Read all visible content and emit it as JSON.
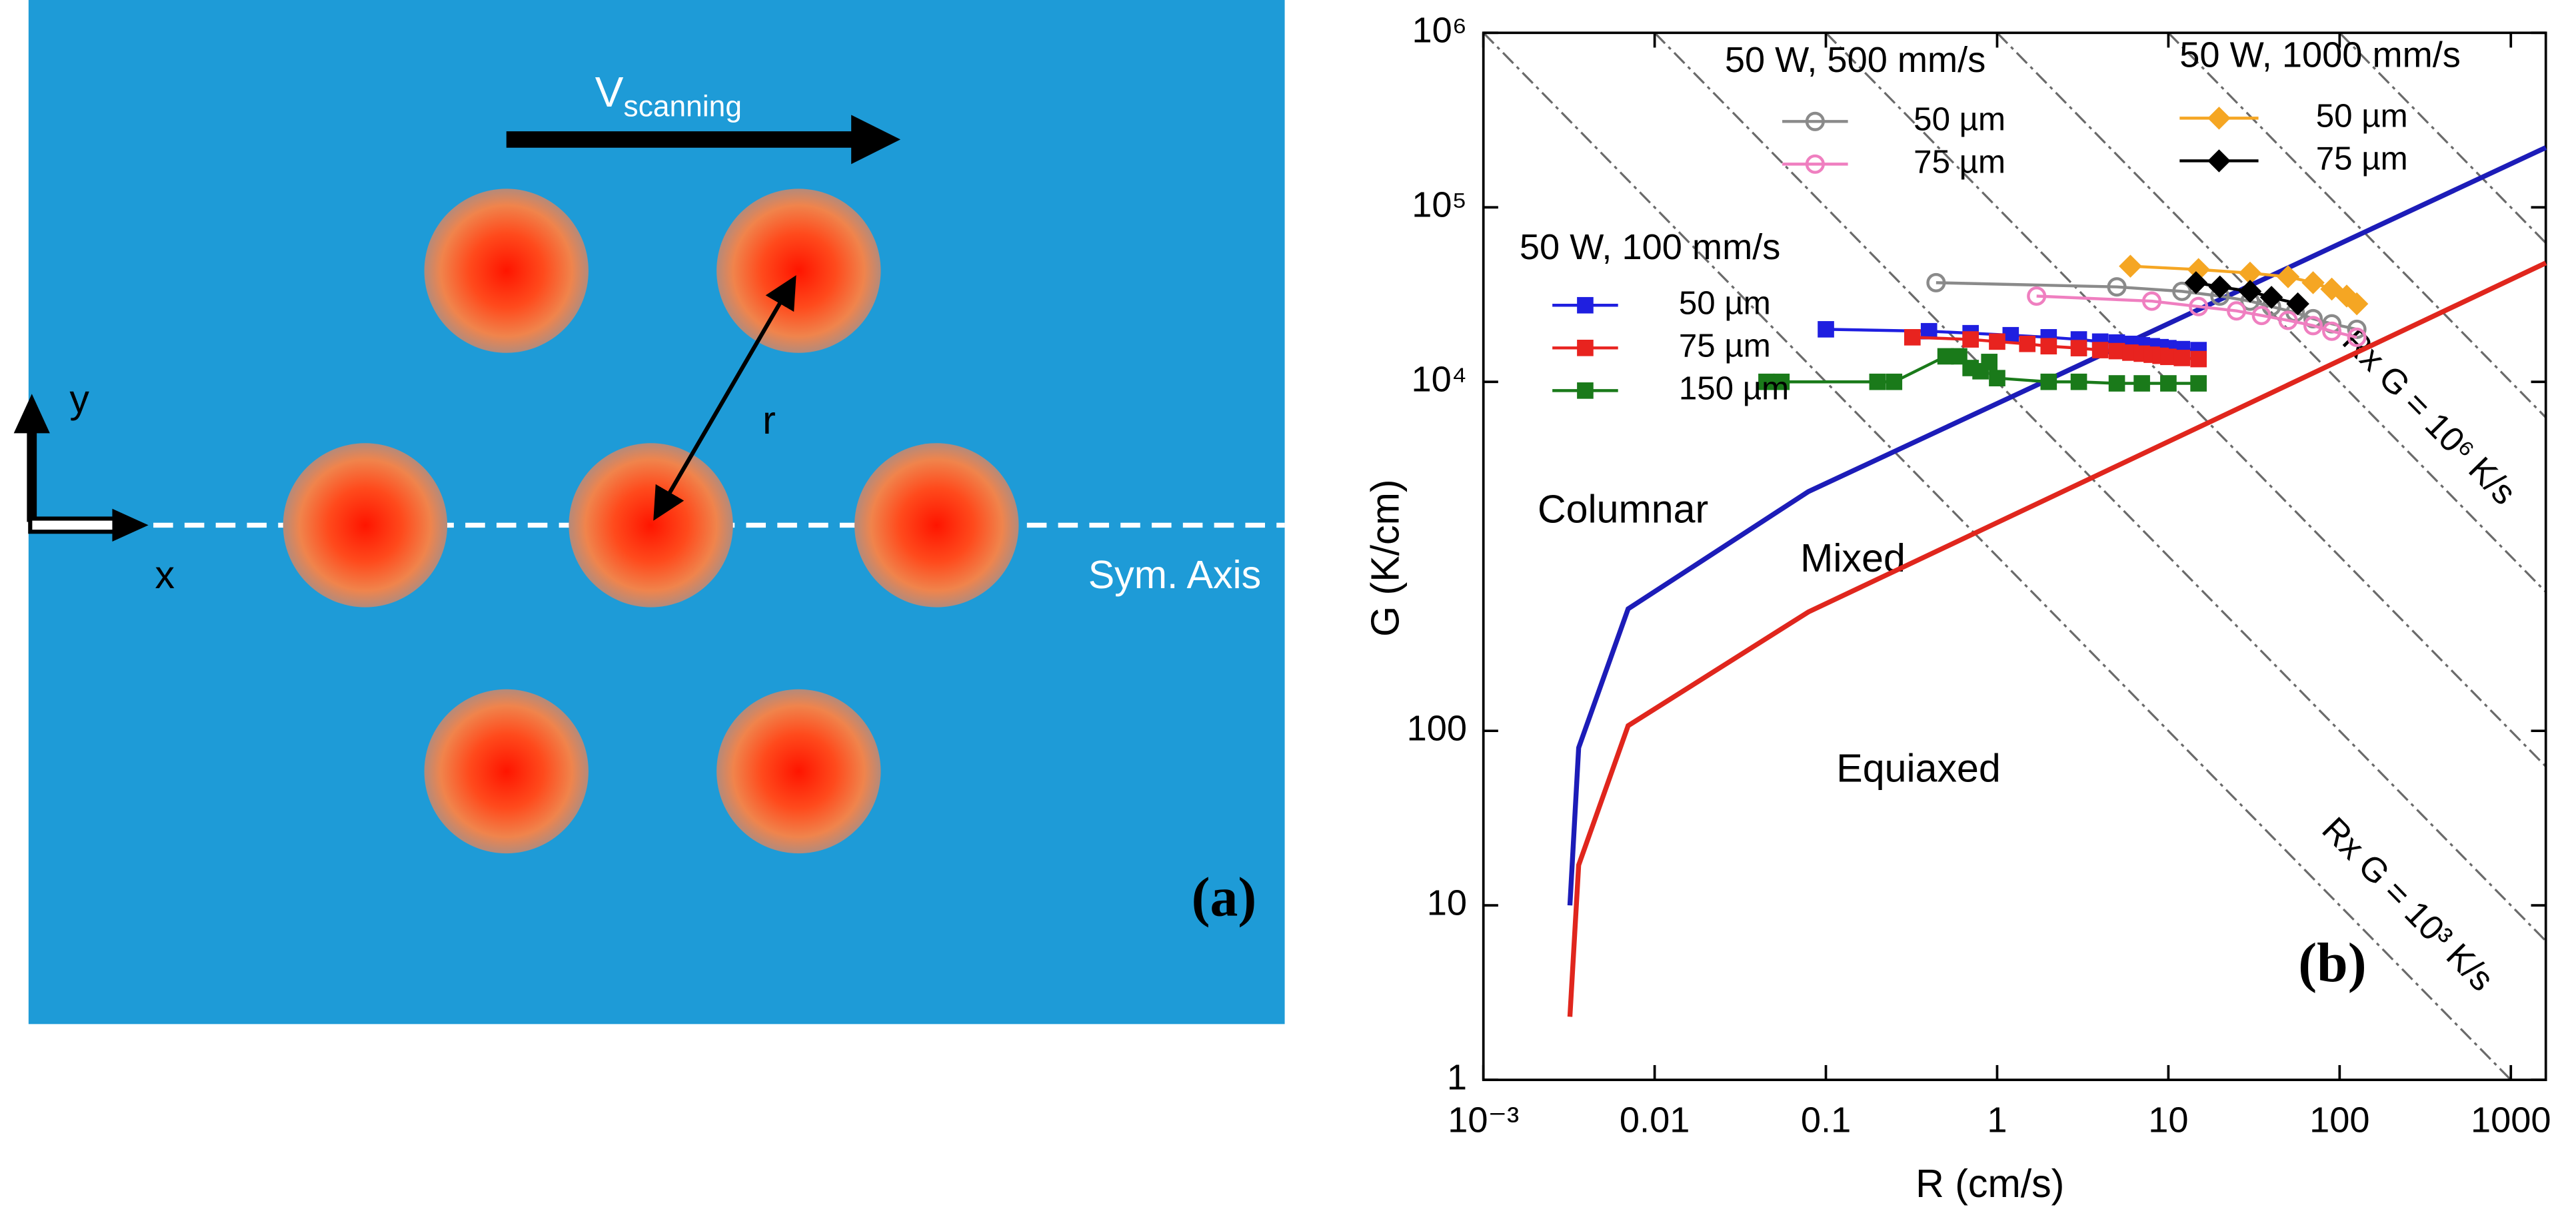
{
  "diagram": {
    "v_label": "V",
    "v_sub": "scanning",
    "r_label": "r",
    "y_label": "y",
    "x_label": "x",
    "axis_label": "Sym. Axis",
    "panel_label": "(a)"
  },
  "chart_data": {
    "type": "scatter",
    "panel_label": "(b)",
    "x_label": "R (cm/s)",
    "y_label": "G (K/cm)",
    "log_x": true,
    "log_y": true,
    "xlim": [
      0.001,
      1600
    ],
    "ylim": [
      1,
      1000000
    ],
    "xticks": [
      {
        "value": 0.001,
        "label": "10⁻³"
      },
      0.01,
      0.1,
      1,
      10,
      100,
      1000
    ],
    "yticks": [
      1,
      10,
      100,
      {
        "value": 10000,
        "label": "10⁴"
      },
      {
        "value": 100000,
        "label": "10⁵"
      },
      {
        "value": 1000000,
        "label": "10⁶"
      }
    ],
    "regions": [
      "Columnar",
      "Mixed",
      "Equiaxed"
    ],
    "iso_lines": [
      {
        "value": 1000,
        "label": "Rx G = 10³ K/s"
      },
      {
        "value": 10000
      },
      {
        "value": 100000
      },
      {
        "value": 1000000,
        "label": "Rx G = 10⁶ K/s"
      },
      {
        "value": 10000000
      },
      {
        "value": 100000000
      }
    ],
    "curves": [
      {
        "color": "#1c1cb8",
        "x": [
          0.0032,
          0.0036,
          0.007,
          0.079,
          1600
        ],
        "values": [
          10,
          80,
          500,
          2350,
          220000
        ]
      },
      {
        "color": "#e0261d",
        "x": [
          0.0032,
          0.0036,
          0.007,
          0.079,
          1600
        ],
        "values": [
          2.3,
          17,
          107,
          480,
          48000
        ]
      }
    ],
    "series_groups": [
      {
        "title": "50 W, 100 mm/s",
        "series": [
          {
            "name": "50 µm",
            "color": "#1f1fe0",
            "marker": "square",
            "x": [
              0.1,
              0.4,
              0.7,
              1.2,
              2,
              3,
              4,
              5,
              6,
              7,
              8,
              9,
              10,
              12,
              15
            ],
            "values": [
              20000,
              19500,
              19000,
              18500,
              18000,
              17500,
              17000,
              16800,
              16500,
              16200,
              16000,
              15800,
              15600,
              15400,
              15200
            ]
          },
          {
            "name": "75 µm",
            "color": "#e8231f",
            "marker": "square",
            "x": [
              0.32,
              0.7,
              1,
              1.5,
              2,
              3,
              4,
              5,
              6,
              7,
              8,
              9,
              10,
              12,
              15
            ],
            "values": [
              18000,
              17500,
              17000,
              16500,
              16000,
              15600,
              15200,
              15000,
              14700,
              14500,
              14300,
              14100,
              13900,
              13700,
              13500
            ]
          },
          {
            "name": "150 µm",
            "color": "#1a7a1a",
            "marker": "square",
            "x": [
              0.045,
              0.055,
              0.2,
              0.25,
              0.5,
              0.6,
              0.7,
              0.8,
              0.9,
              1,
              2,
              3,
              5,
              7,
              10,
              15
            ],
            "values": [
              10000,
              10000,
              10000,
              10000,
              14000,
              14000,
              12000,
              11500,
              13000,
              10500,
              10000,
              10000,
              9800,
              9800,
              9800,
              9800
            ]
          }
        ]
      },
      {
        "title": "50 W, 500 mm/s",
        "series": [
          {
            "name": "50 µm",
            "color": "#8a8a8a",
            "marker": "open-circle",
            "x": [
              0.44,
              5,
              12,
              20,
              30,
              40,
              55,
              70,
              90,
              126
            ],
            "values": [
              37000,
              35000,
              33000,
              31000,
              29000,
              27000,
              25000,
              23000,
              21500,
              20000
            ]
          },
          {
            "name": "75 µm",
            "color": "#ef7fc0",
            "marker": "open-circle",
            "x": [
              1.7,
              8,
              15,
              25,
              35,
              50,
              70,
              90,
              126
            ],
            "values": [
              31000,
              29000,
              27000,
              25500,
              24000,
              22500,
              21000,
              19500,
              18000
            ]
          }
        ]
      },
      {
        "title": "50 W, 1000 mm/s",
        "series": [
          {
            "name": "50 µm",
            "color": "#f5a623",
            "marker": "diamond",
            "x": [
              6,
              15,
              30,
              50,
              70,
              90,
              110,
              126
            ],
            "values": [
              46000,
              44000,
              42000,
              40000,
              37000,
              34000,
              31000,
              28000
            ]
          },
          {
            "name": "75 µm",
            "color": "#000000",
            "marker": "diamond",
            "x": [
              14.5,
              20,
              30,
              40,
              57
            ],
            "values": [
              37000,
              35000,
              33000,
              30500,
              28000
            ]
          }
        ]
      }
    ]
  }
}
